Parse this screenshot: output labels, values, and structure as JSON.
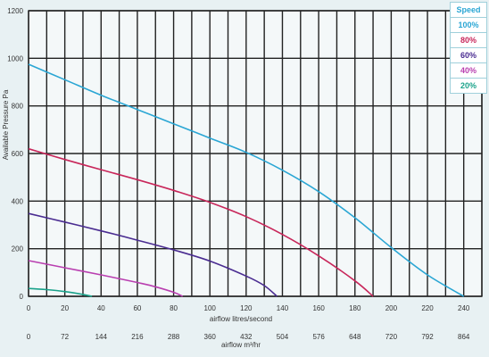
{
  "chart_data": {
    "type": "line",
    "xlabel": "airflow litres/second",
    "xlabel2": "airflow m³/hr",
    "ylabel": "Available Pressure Pa",
    "xlim": [
      0,
      250
    ],
    "ylim": [
      0,
      1200
    ],
    "x_ticks": [
      "0",
      "20",
      "40",
      "60",
      "80",
      "100",
      "120",
      "140",
      "160",
      "180",
      "200",
      "220",
      "240"
    ],
    "x2_ticks": [
      "0",
      "72",
      "144",
      "216",
      "288",
      "360",
      "432",
      "504",
      "576",
      "648",
      "720",
      "792",
      "864"
    ],
    "y_ticks": [
      "0",
      "200",
      "400",
      "600",
      "800",
      "1000",
      "1200"
    ],
    "grid": true,
    "legend_title": "Speed",
    "legend_position": "top-right",
    "series": [
      {
        "name": "100%",
        "color": "#2aa6d4",
        "x": [
          0,
          20,
          40,
          60,
          80,
          100,
          120,
          140,
          160,
          180,
          200,
          220,
          240
        ],
        "y": [
          975,
          910,
          845,
          785,
          725,
          665,
          605,
          530,
          440,
          330,
          205,
          90,
          0
        ]
      },
      {
        "name": "80%",
        "color": "#c8265a",
        "x": [
          0,
          20,
          40,
          60,
          80,
          100,
          120,
          140,
          160,
          180,
          190
        ],
        "y": [
          620,
          575,
          532,
          490,
          445,
          395,
          335,
          260,
          170,
          65,
          0
        ]
      },
      {
        "name": "60%",
        "color": "#4a2c91",
        "x": [
          0,
          20,
          40,
          60,
          80,
          100,
          120,
          130,
          137
        ],
        "y": [
          348,
          312,
          275,
          236,
          195,
          148,
          85,
          45,
          0
        ]
      },
      {
        "name": "40%",
        "color": "#b93fb0",
        "x": [
          0,
          20,
          40,
          60,
          70,
          80,
          85
        ],
        "y": [
          150,
          120,
          90,
          58,
          40,
          17,
          0
        ]
      },
      {
        "name": "20%",
        "color": "#1aa28a",
        "x": [
          0,
          10,
          20,
          30,
          35
        ],
        "y": [
          33,
          28,
          20,
          8,
          0
        ]
      }
    ]
  }
}
